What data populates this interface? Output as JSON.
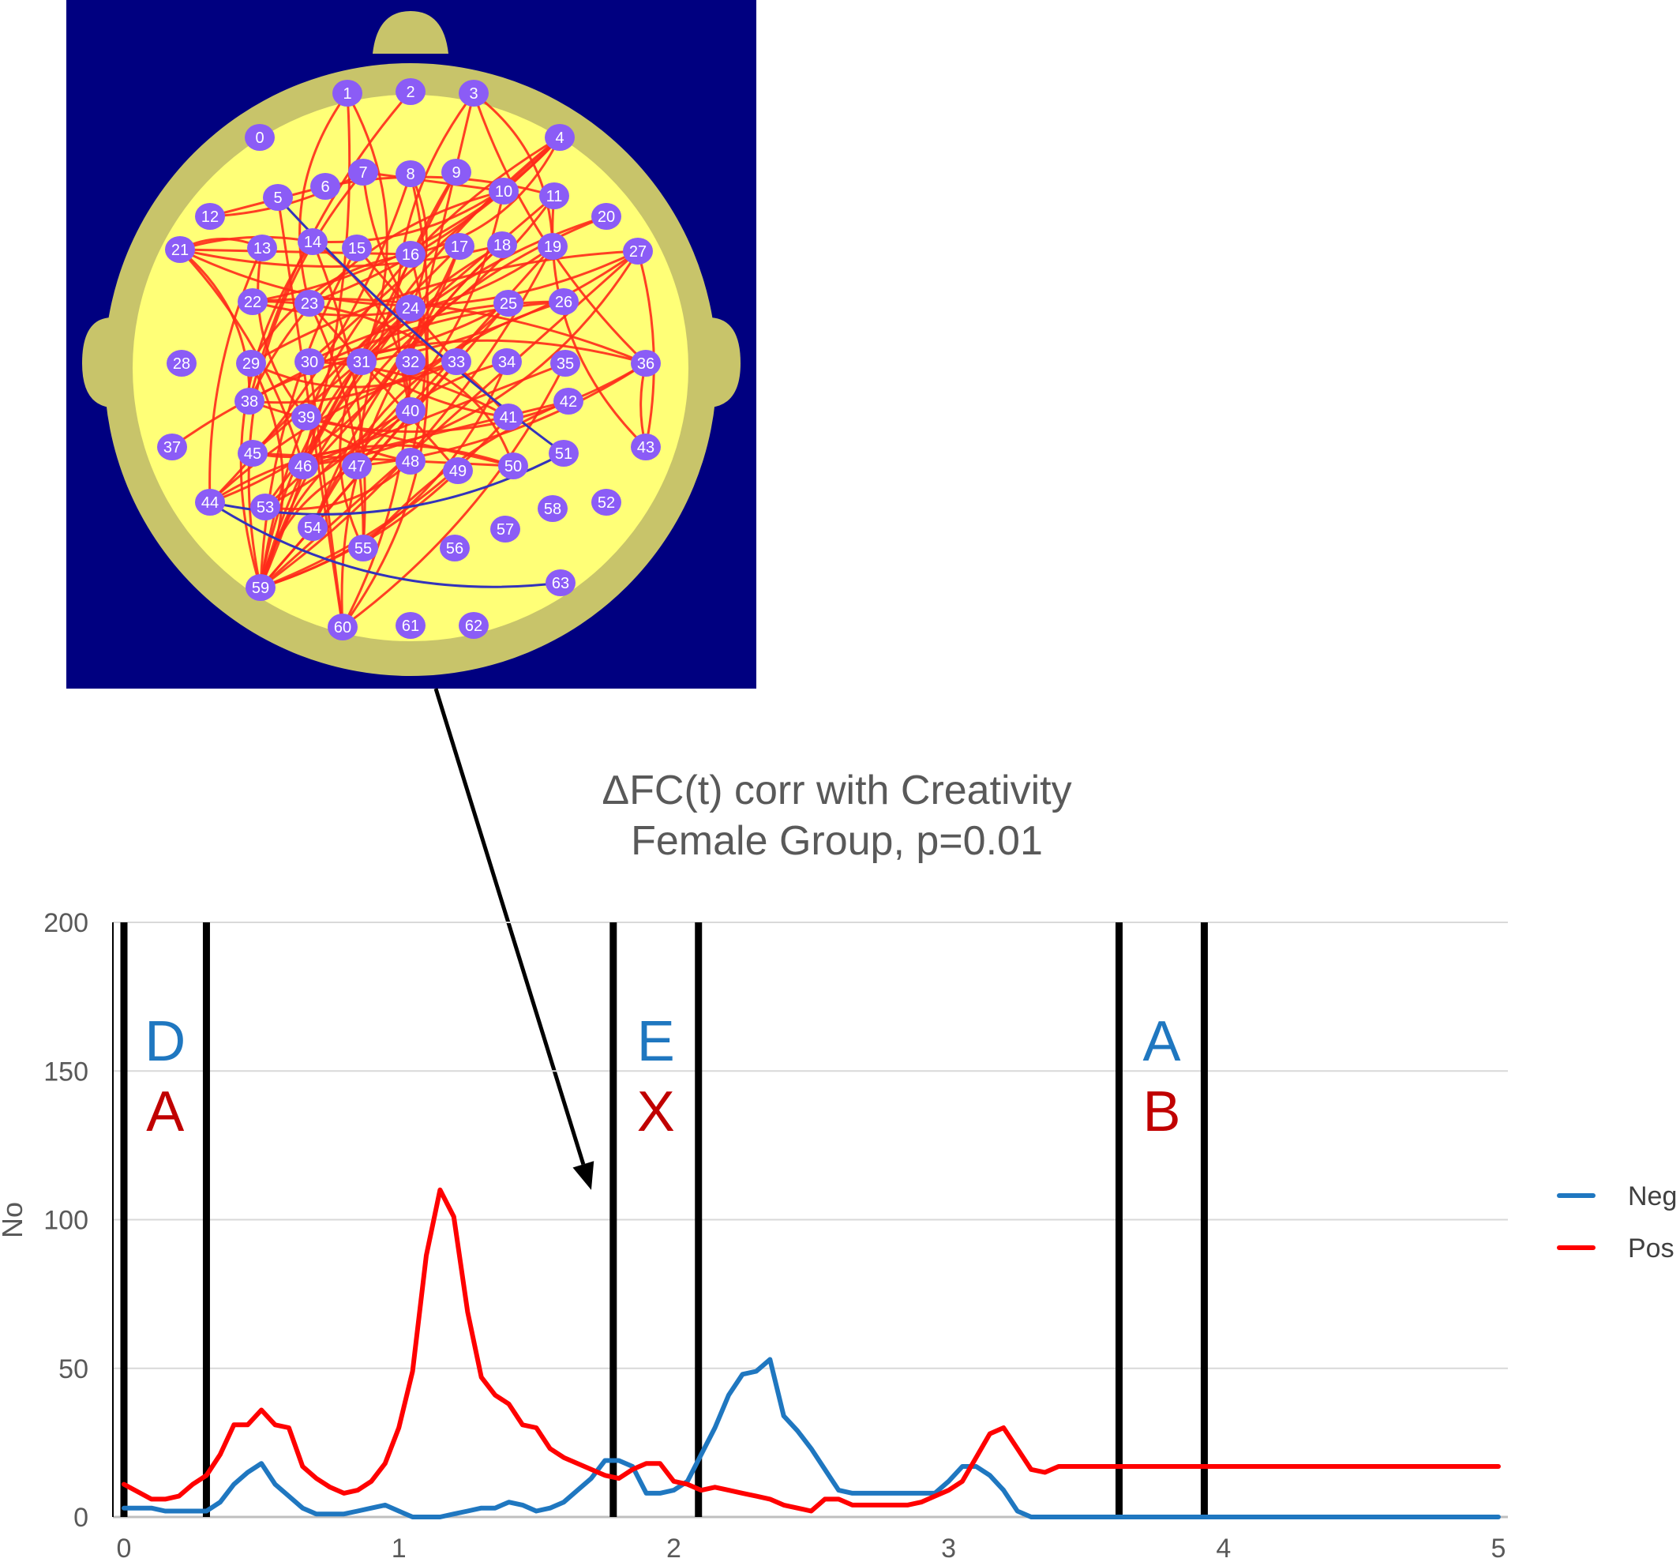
{
  "colors": {
    "neg": "#1f77c0",
    "pos": "#ff0000",
    "band_line": "#000000",
    "grid": "#d9d9d9",
    "band_top_letter": "#1f77c0",
    "band_bottom_letter": "#c00000",
    "head_panel_bg": "#000080",
    "head_fill": "#ffff77",
    "head_rim": "#c8c46a",
    "electrode": "#8b5cf6",
    "connection_pos": "#ff2a1a",
    "connection_neg": "#3333bb"
  },
  "electrode_labels": [
    "0",
    "1",
    "2",
    "3",
    "4",
    "5",
    "6",
    "7",
    "8",
    "9",
    "10",
    "11",
    "12",
    "13",
    "14",
    "15",
    "16",
    "17",
    "18",
    "19",
    "20",
    "21",
    "22",
    "23",
    "24",
    "25",
    "26",
    "27",
    "28",
    "29",
    "30",
    "31",
    "32",
    "33",
    "34",
    "35",
    "36",
    "37",
    "38",
    "39",
    "40",
    "41",
    "42",
    "43",
    "44",
    "45",
    "46",
    "47",
    "48",
    "49",
    "50",
    "51",
    "52",
    "53",
    "54",
    "55",
    "56",
    "57",
    "58",
    "59",
    "60",
    "61",
    "62",
    "63"
  ],
  "chart_data": {
    "type": "line",
    "title": [
      "ΔFC(t) corr with Creativity",
      "Female Group, p=0.01"
    ],
    "xlabel": "",
    "ylabel": "No",
    "xlim": [
      0,
      5
    ],
    "ylim": [
      0,
      200
    ],
    "xticks": [
      "0",
      "1",
      "2",
      "3",
      "4",
      "5"
    ],
    "yticks": [
      "0",
      "50",
      "100",
      "150",
      "200"
    ],
    "grid": true,
    "legend_position": "right",
    "x": [
      0,
      0.1,
      0.15,
      0.2,
      0.25,
      0.3,
      0.35,
      0.4,
      0.45,
      0.5,
      0.55,
      0.6,
      0.65,
      0.7,
      0.75,
      0.8,
      0.85,
      0.9,
      0.95,
      1,
      1.05,
      1.1,
      1.15,
      1.2,
      1.25,
      1.3,
      1.35,
      1.4,
      1.45,
      1.5,
      1.55,
      1.6,
      1.65,
      1.7,
      1.75,
      1.8,
      1.85,
      1.9,
      1.95,
      2,
      2.05,
      2.1,
      2.15,
      2.2,
      2.25,
      2.3,
      2.35,
      2.4,
      2.45,
      2.5,
      2.55,
      2.6,
      2.65,
      2.7,
      2.75,
      2.8,
      2.85,
      2.9,
      2.95,
      3,
      3.05,
      3.1,
      3.15,
      3.2,
      3.25,
      3.3,
      3.35,
      3.4,
      3.45,
      3.5,
      3.55,
      3.6,
      3.65,
      3.7,
      3.75,
      3.8,
      3.85,
      3.9,
      3.95,
      4,
      4.05,
      4.1,
      4.15,
      4.2,
      4.25,
      4.3,
      4.35,
      4.4,
      4.45,
      4.5,
      4.55,
      4.6,
      4.65,
      4.7,
      4.75,
      4.8,
      4.85,
      4.9,
      4.95,
      5
    ],
    "series": [
      {
        "name": "Neg",
        "color": "#1f77c0",
        "values": [
          3,
          3,
          2,
          2,
          2,
          2,
          5,
          11,
          15,
          18,
          11,
          7,
          3,
          1,
          1,
          1,
          2,
          3,
          4,
          2,
          0,
          0,
          0,
          1,
          2,
          3,
          3,
          5,
          4,
          2,
          3,
          5,
          9,
          13,
          19,
          19,
          17,
          8,
          8,
          9,
          12,
          21,
          30,
          41,
          48,
          49,
          53,
          34,
          29,
          23,
          16,
          9,
          8,
          8,
          8,
          8,
          8,
          8,
          8,
          12,
          17,
          17,
          14,
          9,
          2,
          0,
          0,
          0,
          0,
          0,
          0,
          0,
          0,
          0,
          0,
          0,
          0,
          0,
          0,
          0,
          0,
          0,
          0,
          0,
          0,
          0,
          0,
          0,
          0,
          0,
          0,
          0,
          0,
          0,
          0,
          0,
          0,
          0,
          0,
          0
        ]
      },
      {
        "name": "Pos",
        "color": "#ff0000",
        "values": [
          11,
          6,
          6,
          7,
          11,
          14,
          21,
          31,
          31,
          36,
          31,
          30,
          17,
          13,
          10,
          8,
          9,
          12,
          18,
          30,
          49,
          88,
          110,
          101,
          69,
          47,
          41,
          38,
          31,
          30,
          23,
          20,
          18,
          16,
          14,
          13,
          16,
          18,
          18,
          12,
          11,
          9,
          10,
          9,
          8,
          7,
          6,
          4,
          3,
          2,
          6,
          6,
          4,
          4,
          4,
          4,
          4,
          5,
          7,
          9,
          12,
          20,
          28,
          30,
          23,
          16,
          15,
          17,
          17,
          17,
          17,
          17,
          17,
          17,
          17,
          17,
          17,
          17,
          17,
          17,
          17,
          17,
          17,
          17,
          17,
          17,
          17,
          17,
          17,
          17,
          17,
          17,
          17,
          17,
          17,
          17,
          17,
          17,
          17,
          17
        ]
      }
    ],
    "band_lines_x": [
      0,
      0.3,
      1.78,
      2.09,
      3.62,
      3.93
    ],
    "band_annotations": [
      {
        "top": "D",
        "bottom": "A",
        "x_from": 0,
        "x_to": 0.3
      },
      {
        "top": "E",
        "bottom": "X",
        "x_from": 1.78,
        "x_to": 2.09
      },
      {
        "top": "A",
        "bottom": "B",
        "x_from": 3.62,
        "x_to": 3.93
      }
    ],
    "arrow_target": {
      "x": 1.7,
      "y": 110
    }
  }
}
